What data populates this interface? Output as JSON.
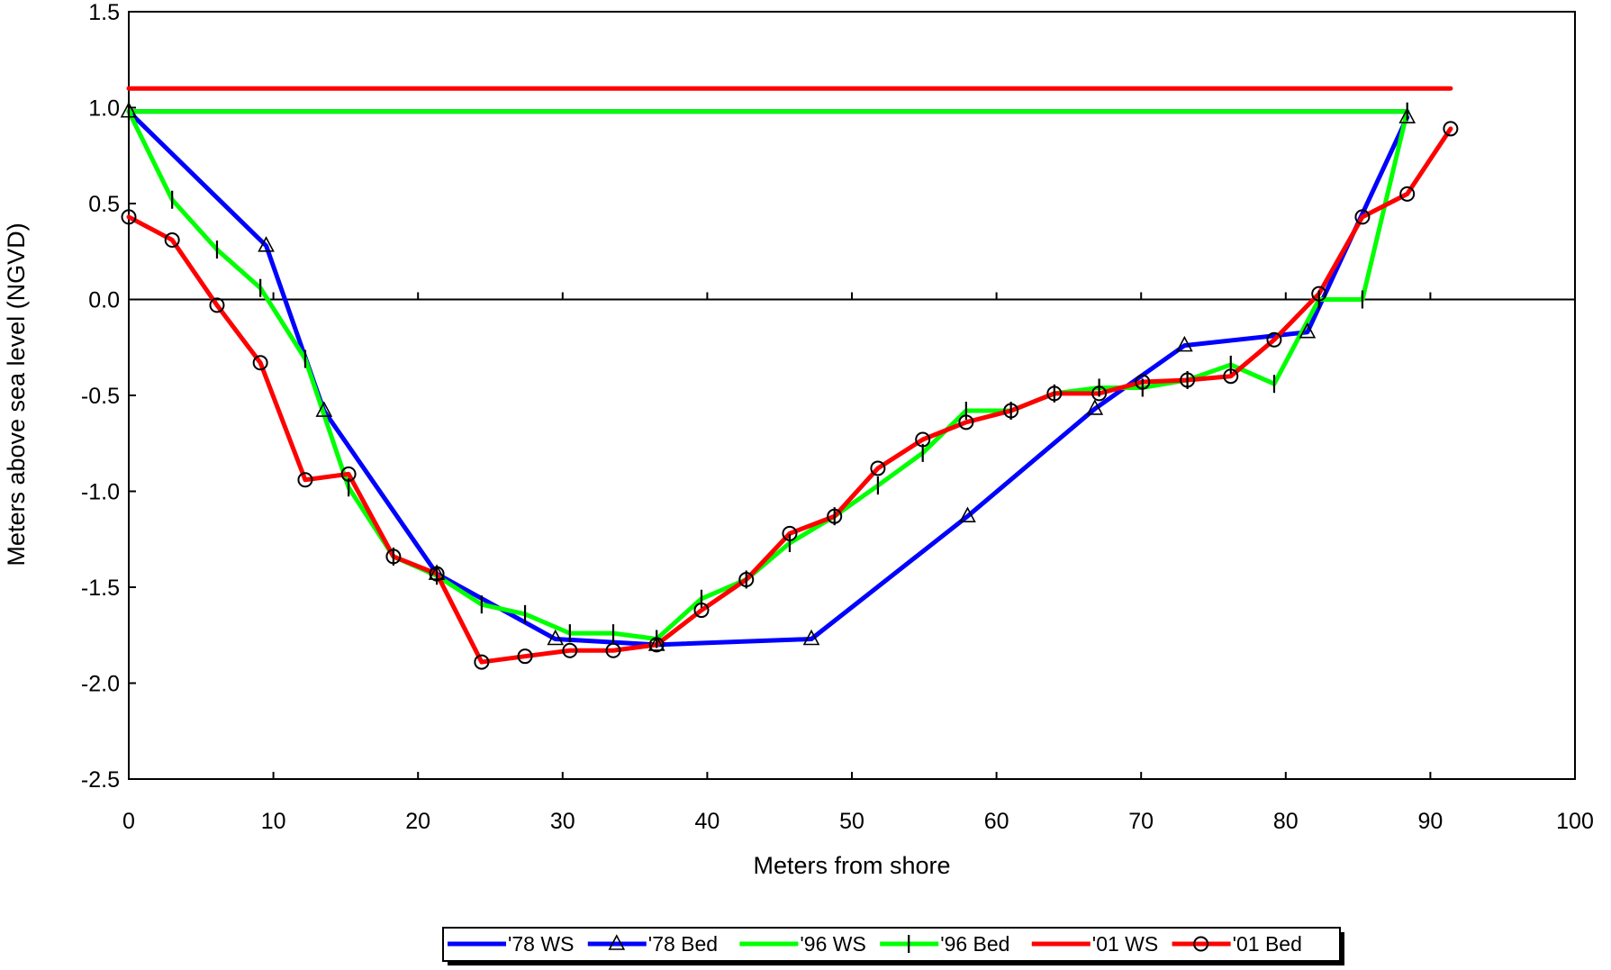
{
  "chart_data": {
    "type": "line",
    "title": "",
    "xlabel": "Meters from shore",
    "ylabel": "Meters above sea level (NGVD)",
    "xlim": [
      0,
      100
    ],
    "ylim": [
      -2.5,
      1.5
    ],
    "x_ticks": [
      0,
      10,
      20,
      30,
      40,
      50,
      60,
      70,
      80,
      90,
      100
    ],
    "y_ticks": [
      1.5,
      1.0,
      0.5,
      0.0,
      -0.5,
      -1.0,
      -1.5,
      -2.0,
      -2.5
    ],
    "x_tick_labels": [
      "0",
      "10",
      "20",
      "30",
      "40",
      "50",
      "60",
      "70",
      "80",
      "90",
      "100"
    ],
    "y_tick_labels": [
      "1.5",
      "1.0",
      "0.5",
      "0.0",
      "-0.5",
      "-1.0",
      "-1.5",
      "-2.0",
      "-2.5"
    ],
    "grid": false,
    "zero_line": true,
    "legend_position": "bottom",
    "series": [
      {
        "name": "'78 WS",
        "color": "#0000ff",
        "marker": "none",
        "points": [
          [
            0,
            0.98
          ],
          [
            88.4,
            0.98
          ]
        ]
      },
      {
        "name": "'78 Bed",
        "color": "#0000ff",
        "marker": "triangle",
        "points": [
          [
            0,
            0.98
          ],
          [
            9.5,
            0.28
          ],
          [
            13.5,
            -0.58
          ],
          [
            21.3,
            -1.43
          ],
          [
            29.5,
            -1.77
          ],
          [
            36.5,
            -1.8
          ],
          [
            47.2,
            -1.77
          ],
          [
            58.0,
            -1.13
          ],
          [
            66.8,
            -0.57
          ],
          [
            73.0,
            -0.24
          ],
          [
            81.5,
            -0.17
          ],
          [
            88.4,
            0.95
          ]
        ]
      },
      {
        "name": "'96 WS",
        "color": "#00ff00",
        "marker": "none",
        "points": [
          [
            0,
            0.98
          ],
          [
            88.4,
            0.98
          ]
        ]
      },
      {
        "name": "'96 Bed",
        "color": "#00ff00",
        "marker": "vertical-bar",
        "points": [
          [
            0,
            0.98
          ],
          [
            3.0,
            0.52
          ],
          [
            6.1,
            0.26
          ],
          [
            9.1,
            0.06
          ],
          [
            12.2,
            -0.31
          ],
          [
            15.2,
            -0.98
          ],
          [
            18.3,
            -1.34
          ],
          [
            21.3,
            -1.44
          ],
          [
            24.4,
            -1.59
          ],
          [
            27.4,
            -1.64
          ],
          [
            30.5,
            -1.74
          ],
          [
            33.5,
            -1.74
          ],
          [
            36.5,
            -1.77
          ],
          [
            39.6,
            -1.56
          ],
          [
            42.7,
            -1.46
          ],
          [
            45.7,
            -1.27
          ],
          [
            48.8,
            -1.13
          ],
          [
            51.8,
            -0.97
          ],
          [
            54.9,
            -0.8
          ],
          [
            57.9,
            -0.58
          ],
          [
            61.0,
            -0.58
          ],
          [
            64.0,
            -0.49
          ],
          [
            67.1,
            -0.46
          ],
          [
            70.1,
            -0.46
          ],
          [
            73.2,
            -0.42
          ],
          [
            76.2,
            -0.34
          ],
          [
            79.2,
            -0.44
          ],
          [
            82.3,
            0.0
          ],
          [
            85.3,
            0.0
          ],
          [
            88.4,
            0.98
          ]
        ]
      },
      {
        "name": "'01 WS",
        "color": "#ff0000",
        "marker": "none",
        "points": [
          [
            0,
            1.1
          ],
          [
            91.4,
            1.1
          ]
        ]
      },
      {
        "name": "'01 Bed",
        "color": "#ff0000",
        "marker": "circle",
        "points": [
          [
            0,
            0.43
          ],
          [
            3.0,
            0.31
          ],
          [
            6.1,
            -0.03
          ],
          [
            9.1,
            -0.33
          ],
          [
            12.2,
            -0.94
          ],
          [
            15.2,
            -0.91
          ],
          [
            18.3,
            -1.34
          ],
          [
            21.3,
            -1.43
          ],
          [
            24.4,
            -1.89
          ],
          [
            27.4,
            -1.86
          ],
          [
            30.5,
            -1.83
          ],
          [
            33.5,
            -1.83
          ],
          [
            36.5,
            -1.8
          ],
          [
            39.6,
            -1.62
          ],
          [
            42.7,
            -1.46
          ],
          [
            45.7,
            -1.22
          ],
          [
            48.8,
            -1.13
          ],
          [
            51.8,
            -0.88
          ],
          [
            54.9,
            -0.73
          ],
          [
            57.9,
            -0.64
          ],
          [
            61.0,
            -0.58
          ],
          [
            64.0,
            -0.49
          ],
          [
            67.1,
            -0.49
          ],
          [
            70.1,
            -0.43
          ],
          [
            73.2,
            -0.42
          ],
          [
            76.2,
            -0.4
          ],
          [
            79.2,
            -0.21
          ],
          [
            82.3,
            0.03
          ],
          [
            85.3,
            0.43
          ],
          [
            88.4,
            0.55
          ],
          [
            91.4,
            0.89
          ]
        ]
      }
    ]
  }
}
